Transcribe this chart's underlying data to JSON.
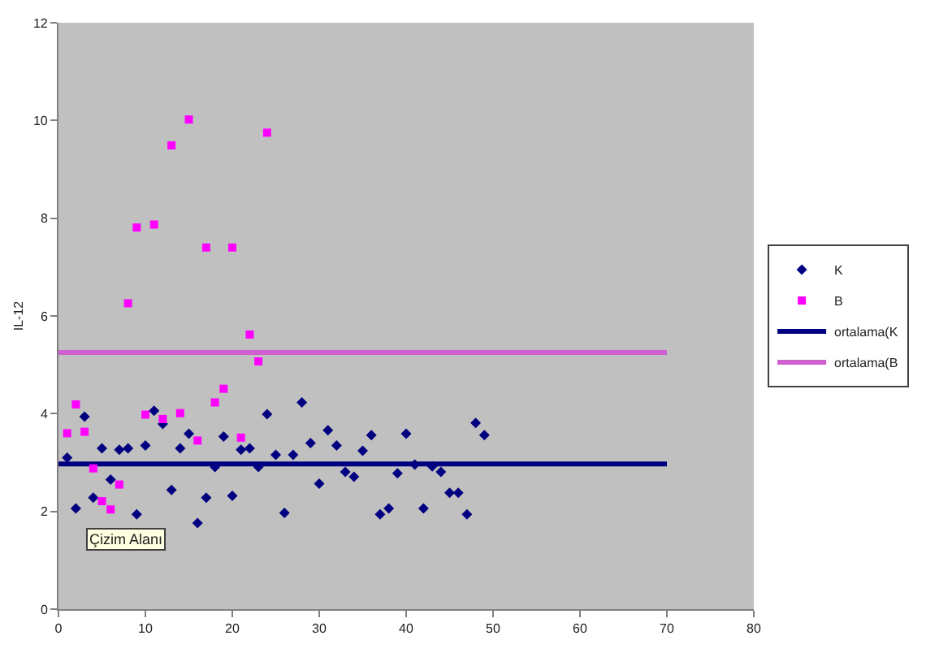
{
  "chart_data": {
    "type": "scatter",
    "ylabel": "IL-12",
    "xlim": [
      0,
      80
    ],
    "xticks": [
      0,
      10,
      20,
      30,
      40,
      50,
      60,
      70,
      80
    ],
    "ylim": [
      0,
      12
    ],
    "yticks": [
      0,
      2,
      4,
      6,
      8,
      10,
      12
    ],
    "grid": false,
    "legend": "right",
    "annotations": [
      "Çizim Alanı"
    ],
    "series": [
      {
        "name": "K",
        "marker": "diamond",
        "color": "#000080",
        "x": [
          1,
          2,
          3,
          4,
          5,
          6,
          7,
          8,
          9,
          10,
          11,
          12,
          13,
          14,
          15,
          16,
          17,
          18,
          19,
          20,
          21,
          22,
          23,
          24,
          25,
          26,
          27,
          28,
          29,
          30,
          31,
          32,
          33,
          34,
          35,
          36,
          37,
          38,
          39,
          40,
          41,
          42,
          43,
          44,
          45,
          46,
          47,
          48,
          49
        ],
        "values": [
          3.1,
          2.06,
          3.94,
          2.28,
          3.29,
          2.65,
          3.26,
          3.29,
          1.94,
          3.35,
          4.06,
          3.79,
          2.44,
          3.29,
          3.59,
          1.76,
          2.28,
          2.91,
          3.53,
          2.32,
          3.26,
          3.29,
          2.91,
          3.99,
          3.16,
          1.97,
          3.16,
          4.23,
          3.4,
          2.57,
          3.66,
          3.35,
          2.81,
          2.71,
          3.24,
          3.56,
          1.94,
          2.06,
          2.78,
          3.59,
          2.96,
          2.06,
          2.92,
          2.81,
          2.38,
          2.38,
          1.94,
          3.81,
          3.56
        ]
      },
      {
        "name": "B",
        "marker": "square",
        "color": "#ff00ff",
        "x": [
          1,
          2,
          3,
          4,
          5,
          6,
          7,
          8,
          9,
          10,
          11,
          12,
          13,
          14,
          15,
          16,
          17,
          18,
          19,
          20,
          21,
          22,
          23,
          24
        ],
        "values": [
          3.6,
          4.19,
          3.63,
          2.88,
          2.21,
          2.04,
          2.55,
          6.26,
          7.81,
          3.98,
          7.87,
          3.89,
          9.49,
          4.01,
          10.02,
          3.45,
          7.4,
          4.23,
          4.51,
          7.4,
          3.51,
          5.62,
          5.07,
          9.75
        ]
      },
      {
        "name": "ortalama(K",
        "type": "line",
        "marker": "none",
        "line_style": "solid",
        "color": "#000080",
        "x": [
          0,
          70
        ],
        "values": [
          2.97,
          2.97
        ]
      },
      {
        "name": "ortalama(B",
        "type": "line",
        "marker": "none",
        "line_style": "solid",
        "color": "#d060d0",
        "x": [
          0,
          70
        ],
        "values": [
          5.25,
          5.25
        ]
      }
    ]
  }
}
